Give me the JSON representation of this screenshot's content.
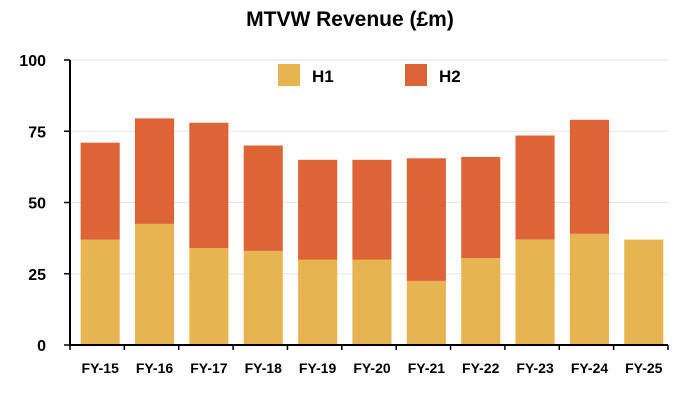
{
  "chart_data": {
    "type": "bar",
    "stacked": true,
    "title": "MTVW Revenue (£m)",
    "xlabel": "",
    "ylabel": "",
    "ylim": [
      0,
      100
    ],
    "yticks": [
      "0",
      "25",
      "50",
      "75",
      "100"
    ],
    "grid": true,
    "legend_position": "top",
    "categories": [
      "FY-15",
      "FY-16",
      "FY-17",
      "FY-18",
      "FY-19",
      "FY-20",
      "FY-21",
      "FY-22",
      "FY-23",
      "FY-24",
      "FY-25"
    ],
    "series": [
      {
        "name": "H1",
        "color": "#e6b450",
        "values": [
          37,
          42.5,
          34,
          33,
          30,
          30,
          22.5,
          30.5,
          37,
          39,
          37
        ]
      },
      {
        "name": "H2",
        "color": "#dc6436",
        "values": [
          34,
          37,
          44,
          37,
          35,
          35,
          43,
          35.5,
          36.5,
          40,
          0
        ]
      }
    ]
  }
}
